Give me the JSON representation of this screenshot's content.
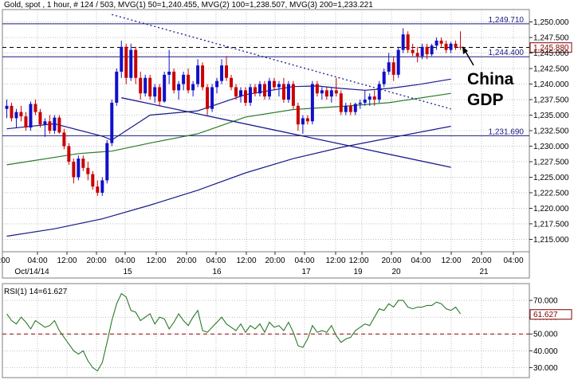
{
  "chart_data": [
    {
      "type": "candlestick",
      "title": "Gold, spot , 1 hour, # 124 / 503, MVG(1) 50=1,240.455, MVG(2) 100=1,238.507, MVG(3) 200=1,233.221",
      "ylim": [
        1213.0,
        1252.0
      ],
      "y_ticks": [
        "1,250.000",
        "1,247.500",
        "1,245.000",
        "1,242.500",
        "1,240.000",
        "1,237.500",
        "1,235.000",
        "1,232.500",
        "1,230.000",
        "1,227.500",
        "1,225.000",
        "1,222.500",
        "1,220.000",
        "1,217.500",
        "1,215.000"
      ],
      "y_tick_values": [
        1250,
        1247.5,
        1245,
        1242.5,
        1240,
        1237.5,
        1235,
        1232.5,
        1230,
        1227.5,
        1225,
        1222.5,
        1220,
        1217.5,
        1215
      ],
      "time_labels": [
        {
          "time": "04:00",
          "date": "Oct/14/14"
        },
        {
          "time": "12:00",
          "date": ""
        },
        {
          "time": "20:00",
          "date": ""
        },
        {
          "time": "04:00",
          "date": "15"
        },
        {
          "time": "12:00",
          "date": ""
        },
        {
          "time": "20:00",
          "date": ""
        },
        {
          "time": "04:00",
          "date": "16"
        },
        {
          "time": "12:00",
          "date": ""
        },
        {
          "time": "20:00",
          "date": ""
        },
        {
          "time": "04:00",
          "date": "17"
        },
        {
          "time": "12:00",
          "date": ""
        },
        {
          "time": "12:00",
          "date": "19"
        },
        {
          "time": "20:00",
          "date": ""
        },
        {
          "time": "04:00",
          "date": "20"
        },
        {
          "time": "12:00",
          "date": ""
        },
        {
          "time": "20:00",
          "date": ""
        },
        {
          "time": "04:00",
          "date": "21"
        },
        {
          "time": "12:00",
          "date": ""
        }
      ],
      "horizontal_levels": [
        {
          "value": 1249.71,
          "label": "1,249.710",
          "style": "solid",
          "color": "#1a1a80"
        },
        {
          "value": 1245.9,
          "label": "",
          "style": "dashed",
          "color": "#000000"
        },
        {
          "value": 1244.4,
          "label": "1,244.400",
          "style": "solid",
          "color": "#1a1a80"
        },
        {
          "value": 1231.69,
          "label": "1,231.690",
          "style": "solid",
          "color": "#1a1a80"
        }
      ],
      "last_value": {
        "value": 1245.88,
        "label": "1,245.880"
      },
      "annotation": {
        "text_line1": "China",
        "text_line2": "GDP"
      },
      "colors": {
        "up": "#1010c8",
        "down": "#c80000",
        "mvg50": "#1a1a8c",
        "mvg100": "#2a7a2a",
        "mvg200": "#1a1a8c",
        "trend": "#1a1a8c",
        "level": "#1a1a80"
      },
      "candles": [
        [
          1236.0,
          1237.5,
          1234.5,
          1236.5
        ],
        [
          1236.5,
          1237.0,
          1234.0,
          1234.5
        ],
        [
          1234.5,
          1236.0,
          1233.0,
          1235.5
        ],
        [
          1235.5,
          1236.5,
          1234.0,
          1234.8
        ],
        [
          1234.8,
          1235.5,
          1232.5,
          1233.0
        ],
        [
          1233.0,
          1237.2,
          1232.5,
          1236.8
        ],
        [
          1236.8,
          1237.5,
          1235.0,
          1235.5
        ],
        [
          1235.5,
          1236.0,
          1233.0,
          1233.5
        ],
        [
          1233.5,
          1234.5,
          1231.5,
          1234.0
        ],
        [
          1234.0,
          1235.0,
          1232.0,
          1232.5
        ],
        [
          1232.5,
          1235.0,
          1232.0,
          1234.6
        ],
        [
          1234.6,
          1235.0,
          1232.0,
          1232.2
        ],
        [
          1232.2,
          1232.8,
          1229.5,
          1230.0
        ],
        [
          1230.0,
          1230.5,
          1227.0,
          1227.5
        ],
        [
          1227.5,
          1228.0,
          1224.0,
          1225.0
        ],
        [
          1225.0,
          1228.5,
          1224.5,
          1228.0
        ],
        [
          1228.0,
          1228.5,
          1226.0,
          1226.5
        ],
        [
          1226.5,
          1227.5,
          1224.5,
          1225.5
        ],
        [
          1225.5,
          1226.0,
          1223.0,
          1223.5
        ],
        [
          1223.5,
          1224.5,
          1222.0,
          1222.5
        ],
        [
          1222.5,
          1225.0,
          1222.0,
          1224.5
        ],
        [
          1224.5,
          1231.0,
          1224.0,
          1230.5
        ],
        [
          1230.5,
          1237.5,
          1230.0,
          1237.0
        ],
        [
          1237.0,
          1242.5,
          1236.5,
          1242.0
        ],
        [
          1242.0,
          1247.0,
          1241.0,
          1246.0
        ],
        [
          1246.0,
          1246.5,
          1240.0,
          1241.0
        ],
        [
          1241.0,
          1246.5,
          1240.5,
          1245.5
        ],
        [
          1245.5,
          1246.0,
          1240.0,
          1241.0
        ],
        [
          1241.0,
          1242.0,
          1237.5,
          1238.5
        ],
        [
          1238.5,
          1241.5,
          1238.0,
          1241.0
        ],
        [
          1241.0,
          1241.5,
          1237.5,
          1238.0
        ],
        [
          1238.0,
          1240.0,
          1237.0,
          1239.5
        ],
        [
          1239.5,
          1240.0,
          1236.5,
          1237.2
        ],
        [
          1237.2,
          1242.0,
          1237.0,
          1241.5
        ],
        [
          1241.5,
          1245.5,
          1240.0,
          1242.0
        ],
        [
          1242.0,
          1242.5,
          1238.5,
          1239.0
        ],
        [
          1239.0,
          1240.5,
          1237.5,
          1240.0
        ],
        [
          1240.0,
          1242.0,
          1239.0,
          1241.5
        ],
        [
          1241.5,
          1242.5,
          1238.5,
          1239.0
        ],
        [
          1239.0,
          1240.5,
          1238.0,
          1240.0
        ],
        [
          1240.0,
          1244.0,
          1239.5,
          1243.0
        ],
        [
          1243.0,
          1243.5,
          1239.0,
          1239.5
        ],
        [
          1239.5,
          1240.0,
          1235.0,
          1236.0
        ],
        [
          1236.0,
          1240.0,
          1235.5,
          1239.5
        ],
        [
          1239.5,
          1241.0,
          1238.5,
          1240.5
        ],
        [
          1240.5,
          1244.0,
          1240.0,
          1243.0
        ],
        [
          1243.0,
          1244.5,
          1240.5,
          1241.0
        ],
        [
          1241.0,
          1241.5,
          1239.0,
          1239.5
        ],
        [
          1239.5,
          1240.0,
          1237.5,
          1238.0
        ],
        [
          1238.0,
          1239.5,
          1237.0,
          1239.0
        ],
        [
          1239.0,
          1239.5,
          1236.5,
          1237.0
        ],
        [
          1237.0,
          1240.0,
          1236.5,
          1239.5
        ],
        [
          1239.5,
          1240.0,
          1238.0,
          1238.5
        ],
        [
          1238.5,
          1240.5,
          1238.0,
          1240.0
        ],
        [
          1240.0,
          1240.5,
          1237.5,
          1238.0
        ],
        [
          1238.0,
          1241.0,
          1237.5,
          1240.5
        ],
        [
          1240.5,
          1241.0,
          1239.0,
          1239.5
        ],
        [
          1239.5,
          1240.5,
          1238.0,
          1240.0
        ],
        [
          1240.0,
          1241.0,
          1237.0,
          1237.5
        ],
        [
          1237.5,
          1240.5,
          1237.0,
          1240.0
        ],
        [
          1240.0,
          1240.5,
          1236.0,
          1236.5
        ],
        [
          1236.5,
          1237.0,
          1232.5,
          1233.5
        ],
        [
          1233.5,
          1235.0,
          1232.0,
          1234.5
        ],
        [
          1234.5,
          1235.0,
          1233.5,
          1234.0
        ],
        [
          1234.0,
          1240.5,
          1233.5,
          1240.0
        ],
        [
          1240.0,
          1240.5,
          1238.0,
          1238.5
        ],
        [
          1238.5,
          1239.5,
          1237.5,
          1239.0
        ],
        [
          1239.0,
          1239.5,
          1237.5,
          1238.0
        ],
        [
          1238.0,
          1239.5,
          1237.0,
          1239.0
        ],
        [
          1239.0,
          1241.0,
          1238.0,
          1238.5
        ],
        [
          1238.5,
          1239.0,
          1235.0,
          1235.5
        ],
        [
          1235.5,
          1237.0,
          1235.0,
          1236.5
        ],
        [
          1236.5,
          1237.0,
          1235.0,
          1235.5
        ],
        [
          1235.5,
          1237.0,
          1235.0,
          1236.8
        ],
        [
          1236.8,
          1237.5,
          1236.0,
          1237.0
        ],
        [
          1237.0,
          1239.0,
          1236.5,
          1237.5
        ],
        [
          1237.5,
          1238.5,
          1236.5,
          1238.0
        ],
        [
          1238.0,
          1239.0,
          1236.5,
          1237.5
        ],
        [
          1237.5,
          1240.5,
          1237.0,
          1240.0
        ],
        [
          1240.0,
          1242.5,
          1239.5,
          1242.0
        ],
        [
          1242.0,
          1245.0,
          1241.5,
          1243.5
        ],
        [
          1243.5,
          1244.5,
          1240.5,
          1241.5
        ],
        [
          1241.5,
          1246.0,
          1241.0,
          1245.5
        ],
        [
          1245.5,
          1249.0,
          1245.0,
          1248.0
        ],
        [
          1248.0,
          1248.5,
          1245.0,
          1245.5
        ],
        [
          1245.5,
          1246.5,
          1244.5,
          1245.0
        ],
        [
          1245.0,
          1246.0,
          1243.5,
          1244.5
        ],
        [
          1244.5,
          1246.5,
          1244.0,
          1246.0
        ],
        [
          1246.0,
          1246.5,
          1244.0,
          1244.8
        ],
        [
          1244.8,
          1246.5,
          1244.5,
          1246.2
        ],
        [
          1246.2,
          1247.5,
          1245.5,
          1247.0
        ],
        [
          1247.0,
          1247.5,
          1246.0,
          1246.5
        ],
        [
          1246.5,
          1247.0,
          1245.0,
          1245.5
        ],
        [
          1245.5,
          1246.8,
          1245.0,
          1246.5
        ],
        [
          1246.5,
          1247.0,
          1245.5,
          1246.0
        ],
        [
          1246.0,
          1248.5,
          1245.5,
          1245.88
        ]
      ],
      "mvg50": [
        [
          0,
          1232.8
        ],
        [
          10,
          1233.6
        ],
        [
          20,
          1231.6
        ],
        [
          22,
          1231.0
        ],
        [
          30,
          1235.0
        ],
        [
          40,
          1235.7
        ],
        [
          50,
          1238.3
        ],
        [
          60,
          1239.6
        ],
        [
          65,
          1239.7
        ],
        [
          70,
          1239.3
        ],
        [
          75,
          1239.0
        ],
        [
          80,
          1239.3
        ],
        [
          86,
          1239.9
        ],
        [
          93,
          1240.8
        ]
      ],
      "mvg100": [
        [
          0,
          1227.0
        ],
        [
          15,
          1228.8
        ],
        [
          22,
          1229.2
        ],
        [
          30,
          1230.5
        ],
        [
          40,
          1232.0
        ],
        [
          50,
          1234.7
        ],
        [
          60,
          1235.9
        ],
        [
          70,
          1236.4
        ],
        [
          80,
          1237.0
        ],
        [
          93,
          1238.5
        ]
      ],
      "mvg200": [
        [
          0,
          1215.5
        ],
        [
          10,
          1216.7
        ],
        [
          20,
          1218.3
        ],
        [
          30,
          1220.5
        ],
        [
          40,
          1222.9
        ],
        [
          50,
          1225.7
        ],
        [
          60,
          1228.0
        ],
        [
          70,
          1229.8
        ],
        [
          80,
          1231.3
        ],
        [
          93,
          1233.2
        ]
      ],
      "trendlines": [
        {
          "from": [
            22,
            1251.2
          ],
          "to": [
            93,
            1236.0
          ],
          "style": "dotted"
        },
        {
          "from": [
            24,
            1237.8
          ],
          "to": [
            93,
            1226.6
          ],
          "style": "solid"
        }
      ]
    },
    {
      "type": "line",
      "title": "RSI(1) 14=61.627",
      "ylim": [
        24.0,
        80.0
      ],
      "y_ticks": [
        "70.000",
        "60.000",
        "50.000",
        "40.000",
        "30.000"
      ],
      "y_tick_values": [
        70,
        60,
        50,
        40,
        30
      ],
      "reference_level": 50,
      "last_value": {
        "value": 61.627,
        "label": "61.627"
      },
      "color": "#2a7a2a",
      "values": [
        62,
        58,
        56,
        60,
        57,
        53,
        58,
        56,
        54,
        55,
        58,
        52,
        48,
        44,
        40,
        38,
        40,
        34,
        30,
        28,
        33,
        45,
        58,
        68,
        74,
        72,
        64,
        63,
        58,
        60,
        62,
        56,
        60,
        59,
        53,
        57,
        62,
        58,
        55,
        60,
        64,
        52,
        51,
        54,
        57,
        60,
        56,
        54,
        52,
        56,
        51,
        55,
        53,
        56,
        51,
        57,
        54,
        55,
        52,
        57,
        51,
        43,
        42,
        47,
        55,
        51,
        52,
        51,
        55,
        49,
        45,
        47,
        48,
        52,
        54,
        56,
        55,
        60,
        65,
        64,
        68,
        66,
        70,
        70,
        66,
        65,
        66,
        66,
        67,
        67,
        69,
        68,
        65,
        64,
        66,
        62
      ]
    }
  ]
}
